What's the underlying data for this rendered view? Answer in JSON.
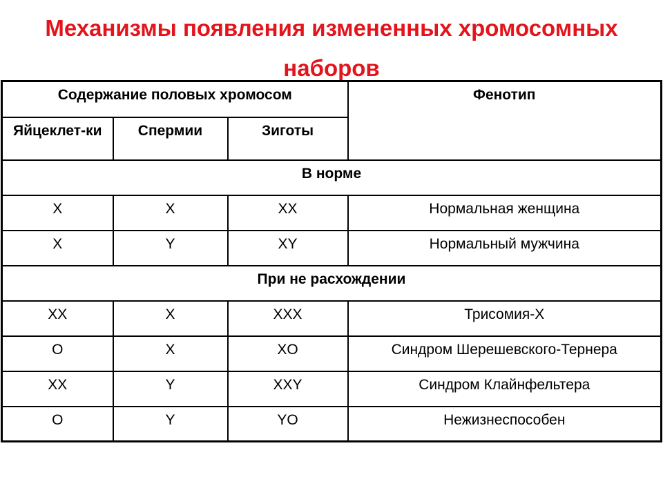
{
  "title": "Механизмы появления измененных хромосомных наборов",
  "table": {
    "group_header": "Содержание половых хромосом",
    "phenotype_header": "Фенотип",
    "col_headers": [
      "Яйцеклет-ки",
      "Спермии",
      "Зиготы"
    ],
    "sections": [
      {
        "label": "В норме",
        "rows": [
          [
            "X",
            "X",
            "XX",
            "Нормальная женщина"
          ],
          [
            "X",
            "Y",
            "XY",
            "Нормальный мужчина"
          ]
        ]
      },
      {
        "label": "При не расхождении",
        "rows": [
          [
            "XX",
            "X",
            "XXX",
            "Трисомия-X"
          ],
          [
            "O",
            "X",
            "XO",
            "Синдром Шерешевского-Тернера"
          ],
          [
            "XX",
            "Y",
            "XXY",
            "Синдром Клайнфельтера"
          ],
          [
            "O",
            "Y",
            "YO",
            "Нежизнеспособен"
          ]
        ]
      }
    ]
  },
  "colors": {
    "title": "#e3141c",
    "border": "#000000"
  }
}
